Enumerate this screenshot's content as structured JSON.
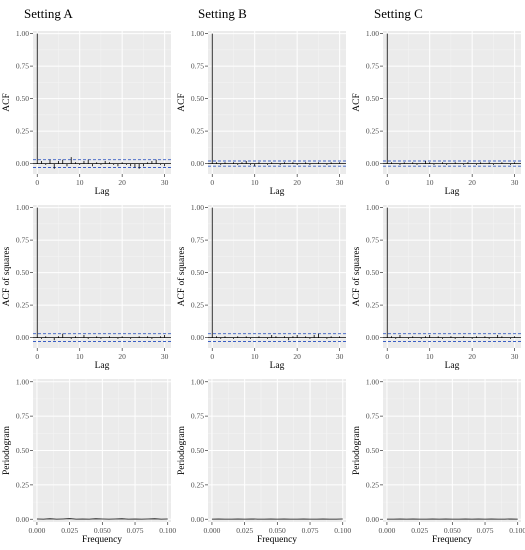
{
  "columns": [
    "Setting A",
    "Setting B",
    "Setting C"
  ],
  "colors": {
    "panel_bg": "#ebebeb",
    "grid_major": "#ffffff",
    "bar": "#000000",
    "conf_band": "#3b5fc4",
    "axis_text": "#4d4d4d"
  },
  "chart_data": [
    {
      "type": "bar",
      "row": 0,
      "col": 0,
      "setting": "Setting A",
      "xlabel": "Lag",
      "ylabel": "ACF",
      "xlim": [
        -1,
        31.5
      ],
      "ylim": [
        -0.08,
        1.02
      ],
      "xticks": [
        0,
        10,
        20,
        30
      ],
      "yticks": [
        0,
        0.25,
        0.5,
        0.75,
        1
      ],
      "ytick_labels": [
        "0.00",
        "0.25",
        "0.50",
        "0.75",
        "1.00"
      ],
      "conf_band": 0.03,
      "grid": true,
      "lags": [
        0,
        1,
        2,
        3,
        4,
        5,
        6,
        7,
        8,
        9,
        10,
        11,
        12,
        13,
        14,
        15,
        16,
        17,
        18,
        19,
        20,
        21,
        22,
        23,
        24,
        25,
        26,
        27,
        28,
        29,
        30
      ],
      "values": [
        1.0,
        0.02,
        -0.01,
        0.03,
        -0.04,
        0.02,
        0.03,
        -0.02,
        0.05,
        0.01,
        -0.01,
        0.02,
        0.03,
        -0.02,
        0.01,
        -0.01,
        0.02,
        0.01,
        -0.01,
        -0.02,
        0.01,
        -0.01,
        -0.02,
        -0.03,
        -0.04,
        -0.02,
        0.01,
        0.02,
        0.03,
        -0.01,
        -0.02
      ]
    },
    {
      "type": "bar",
      "row": 0,
      "col": 1,
      "setting": "Setting B",
      "xlabel": "Lag",
      "ylabel": "ACF",
      "xlim": [
        -1,
        31.5
      ],
      "ylim": [
        -0.08,
        1.02
      ],
      "xticks": [
        0,
        10,
        20,
        30
      ],
      "yticks": [
        0,
        0.25,
        0.5,
        0.75,
        1
      ],
      "ytick_labels": [
        "0.00",
        "0.25",
        "0.50",
        "0.75",
        "1.00"
      ],
      "conf_band": 0.02,
      "grid": true,
      "lags": [
        0,
        1,
        2,
        3,
        4,
        5,
        6,
        7,
        8,
        9,
        10,
        11,
        12,
        13,
        14,
        15,
        16,
        17,
        18,
        19,
        20,
        21,
        22,
        23,
        24,
        25,
        26,
        27,
        28,
        29,
        30
      ],
      "values": [
        1.0,
        0.01,
        -0.01,
        0.01,
        0.0,
        0.01,
        -0.01,
        0.01,
        0.02,
        -0.01,
        -0.02,
        0.01,
        0.0,
        -0.01,
        0.01,
        0.0,
        -0.01,
        0.01,
        0.0,
        0.01,
        -0.01,
        0.0,
        0.01,
        -0.01,
        0.0,
        0.01,
        0.0,
        -0.01,
        0.01,
        0.0,
        0.01
      ]
    },
    {
      "type": "bar",
      "row": 0,
      "col": 2,
      "setting": "Setting C",
      "xlabel": "Lag",
      "ylabel": "ACF",
      "xlim": [
        -1,
        31.5
      ],
      "ylim": [
        -0.08,
        1.02
      ],
      "xticks": [
        0,
        10,
        20,
        30
      ],
      "yticks": [
        0,
        0.25,
        0.5,
        0.75,
        1
      ],
      "ytick_labels": [
        "0.00",
        "0.25",
        "0.50",
        "0.75",
        "1.00"
      ],
      "conf_band": 0.02,
      "grid": true,
      "lags": [
        0,
        1,
        2,
        3,
        4,
        5,
        6,
        7,
        8,
        9,
        10,
        11,
        12,
        13,
        14,
        15,
        16,
        17,
        18,
        19,
        20,
        21,
        22,
        23,
        24,
        25,
        26,
        27,
        28,
        29,
        30
      ],
      "values": [
        1.0,
        0.01,
        0.0,
        -0.01,
        0.01,
        0.0,
        0.01,
        -0.01,
        0.0,
        0.02,
        0.01,
        -0.01,
        0.0,
        0.01,
        -0.01,
        0.0,
        0.01,
        0.0,
        -0.01,
        0.01,
        0.0,
        -0.01,
        0.01,
        0.0,
        0.01,
        -0.01,
        0.0,
        0.01,
        0.0,
        -0.01,
        0.01
      ]
    },
    {
      "type": "bar",
      "row": 1,
      "col": 0,
      "setting": "Setting A",
      "xlabel": "Lag",
      "ylabel": "ACF of squares",
      "xlim": [
        -1,
        31.5
      ],
      "ylim": [
        -0.08,
        1.02
      ],
      "xticks": [
        0,
        10,
        20,
        30
      ],
      "yticks": [
        0,
        0.25,
        0.5,
        0.75,
        1
      ],
      "ytick_labels": [
        "0.00",
        "0.25",
        "0.50",
        "0.75",
        "1.00"
      ],
      "conf_band": 0.03,
      "grid": true,
      "lags": [
        0,
        1,
        2,
        3,
        4,
        5,
        6,
        7,
        8,
        9,
        10,
        11,
        12,
        13,
        14,
        15,
        16,
        17,
        18,
        19,
        20,
        21,
        22,
        23,
        24,
        25,
        26,
        27,
        28,
        29,
        30
      ],
      "values": [
        1.0,
        -0.01,
        0.01,
        0.0,
        -0.02,
        0.01,
        0.03,
        0.0,
        -0.01,
        0.01,
        0.0,
        0.02,
        -0.01,
        0.0,
        0.01,
        -0.01,
        0.0,
        0.01,
        0.0,
        -0.01,
        0.01,
        0.0,
        -0.01,
        0.0,
        0.01,
        0.0,
        0.01,
        -0.01,
        0.0,
        0.01,
        0.02
      ]
    },
    {
      "type": "bar",
      "row": 1,
      "col": 1,
      "setting": "Setting B",
      "xlabel": "Lag",
      "ylabel": "ACF of squares",
      "xlim": [
        -1,
        31.5
      ],
      "ylim": [
        -0.08,
        1.02
      ],
      "xticks": [
        0,
        10,
        20,
        30
      ],
      "yticks": [
        0,
        0.25,
        0.5,
        0.75,
        1
      ],
      "ytick_labels": [
        "0.00",
        "0.25",
        "0.50",
        "0.75",
        "1.00"
      ],
      "conf_band": 0.03,
      "grid": true,
      "lags": [
        0,
        1,
        2,
        3,
        4,
        5,
        6,
        7,
        8,
        9,
        10,
        11,
        12,
        13,
        14,
        15,
        16,
        17,
        18,
        19,
        20,
        21,
        22,
        23,
        24,
        25,
        26,
        27,
        28,
        29,
        30
      ],
      "values": [
        1.0,
        0.01,
        -0.01,
        0.01,
        0.0,
        -0.01,
        0.01,
        0.0,
        0.01,
        -0.01,
        0.0,
        0.01,
        0.0,
        -0.01,
        0.02,
        0.01,
        0.0,
        0.01,
        -0.02,
        0.01,
        0.02,
        0.0,
        0.01,
        -0.01,
        0.02,
        0.03,
        0.0,
        -0.01,
        0.01,
        0.0,
        0.01
      ]
    },
    {
      "type": "bar",
      "row": 1,
      "col": 2,
      "setting": "Setting C",
      "xlabel": "Lag",
      "ylabel": "ACF of squares",
      "xlim": [
        -1,
        31.5
      ],
      "ylim": [
        -0.08,
        1.02
      ],
      "xticks": [
        0,
        10,
        20,
        30
      ],
      "yticks": [
        0,
        0.25,
        0.5,
        0.75,
        1
      ],
      "ytick_labels": [
        "0.00",
        "0.25",
        "0.50",
        "0.75",
        "1.00"
      ],
      "conf_band": 0.03,
      "grid": true,
      "lags": [
        0,
        1,
        2,
        3,
        4,
        5,
        6,
        7,
        8,
        9,
        10,
        11,
        12,
        13,
        14,
        15,
        16,
        17,
        18,
        19,
        20,
        21,
        22,
        23,
        24,
        25,
        26,
        27,
        28,
        29,
        30
      ],
      "values": [
        1.0,
        0.01,
        -0.01,
        0.02,
        0.0,
        -0.01,
        0.01,
        0.0,
        -0.01,
        0.01,
        0.02,
        0.0,
        0.01,
        -0.01,
        0.0,
        0.01,
        -0.01,
        0.0,
        0.01,
        0.0,
        -0.01,
        0.01,
        0.0,
        0.01,
        -0.01,
        0.0,
        0.02,
        0.01,
        0.0,
        -0.01,
        0.01
      ]
    },
    {
      "type": "line",
      "row": 2,
      "col": 0,
      "setting": "Setting A",
      "xlabel": "Frequency",
      "ylabel": "Periodogram",
      "xlim": [
        -0.003,
        0.1025
      ],
      "ylim": [
        -0.02,
        1.02
      ],
      "xticks": [
        0,
        0.025,
        0.05,
        0.075,
        0.1
      ],
      "xtick_labels": [
        "0.000",
        "0.025",
        "0.050",
        "0.075",
        "0.100"
      ],
      "yticks": [
        0,
        0.25,
        0.5,
        0.75,
        1
      ],
      "ytick_labels": [
        "0.00",
        "0.25",
        "0.50",
        "0.75",
        "1.00"
      ],
      "grid": true,
      "x": [
        0,
        0.005,
        0.01,
        0.015,
        0.02,
        0.025,
        0.03,
        0.035,
        0.04,
        0.045,
        0.05,
        0.055,
        0.06,
        0.065,
        0.07,
        0.075,
        0.08,
        0.085,
        0.09,
        0.095,
        0.1
      ],
      "y": [
        0.002,
        0.001,
        0.003,
        0.001,
        0.002,
        0.004,
        0.001,
        0.002,
        0.001,
        0.003,
        0.002,
        0.001,
        0.002,
        0.003,
        0.001,
        0.002,
        0.001,
        0.002,
        0.003,
        0.001,
        0.002
      ]
    },
    {
      "type": "line",
      "row": 2,
      "col": 1,
      "setting": "Setting B",
      "xlabel": "Frequency",
      "ylabel": "Periodogram",
      "xlim": [
        -0.003,
        0.1025
      ],
      "ylim": [
        -0.02,
        1.02
      ],
      "xticks": [
        0,
        0.025,
        0.05,
        0.075,
        0.1
      ],
      "xtick_labels": [
        "0.000",
        "0.025",
        "0.050",
        "0.075",
        "0.100"
      ],
      "yticks": [
        0,
        0.25,
        0.5,
        0.75,
        1
      ],
      "ytick_labels": [
        "0.00",
        "0.25",
        "0.50",
        "0.75",
        "1.00"
      ],
      "grid": true,
      "x": [
        0,
        0.005,
        0.01,
        0.015,
        0.02,
        0.025,
        0.03,
        0.035,
        0.04,
        0.045,
        0.05,
        0.055,
        0.06,
        0.065,
        0.07,
        0.075,
        0.08,
        0.085,
        0.09,
        0.095,
        0.1
      ],
      "y": [
        0.001,
        0.002,
        0.001,
        0.001,
        0.002,
        0.001,
        0.002,
        0.001,
        0.001,
        0.002,
        0.001,
        0.002,
        0.001,
        0.001,
        0.002,
        0.001,
        0.001,
        0.002,
        0.001,
        0.001,
        0.002
      ]
    },
    {
      "type": "line",
      "row": 2,
      "col": 2,
      "setting": "Setting C",
      "xlabel": "Frequency",
      "ylabel": "Periodogram",
      "xlim": [
        -0.003,
        0.1025
      ],
      "ylim": [
        -0.02,
        1.02
      ],
      "xticks": [
        0,
        0.025,
        0.05,
        0.075,
        0.1
      ],
      "xtick_labels": [
        "0.000",
        "0.025",
        "0.050",
        "0.075",
        "0.100"
      ],
      "yticks": [
        0,
        0.25,
        0.5,
        0.75,
        1
      ],
      "ytick_labels": [
        "0.00",
        "0.25",
        "0.50",
        "0.75",
        "1.00"
      ],
      "grid": true,
      "x": [
        0,
        0.005,
        0.01,
        0.015,
        0.02,
        0.025,
        0.03,
        0.035,
        0.04,
        0.045,
        0.05,
        0.055,
        0.06,
        0.065,
        0.07,
        0.075,
        0.08,
        0.085,
        0.09,
        0.095,
        0.1
      ],
      "y": [
        0.001,
        0.001,
        0.002,
        0.001,
        0.002,
        0.001,
        0.001,
        0.002,
        0.001,
        0.002,
        0.001,
        0.001,
        0.002,
        0.001,
        0.002,
        0.001,
        0.002,
        0.001,
        0.001,
        0.002,
        0.001
      ]
    }
  ]
}
